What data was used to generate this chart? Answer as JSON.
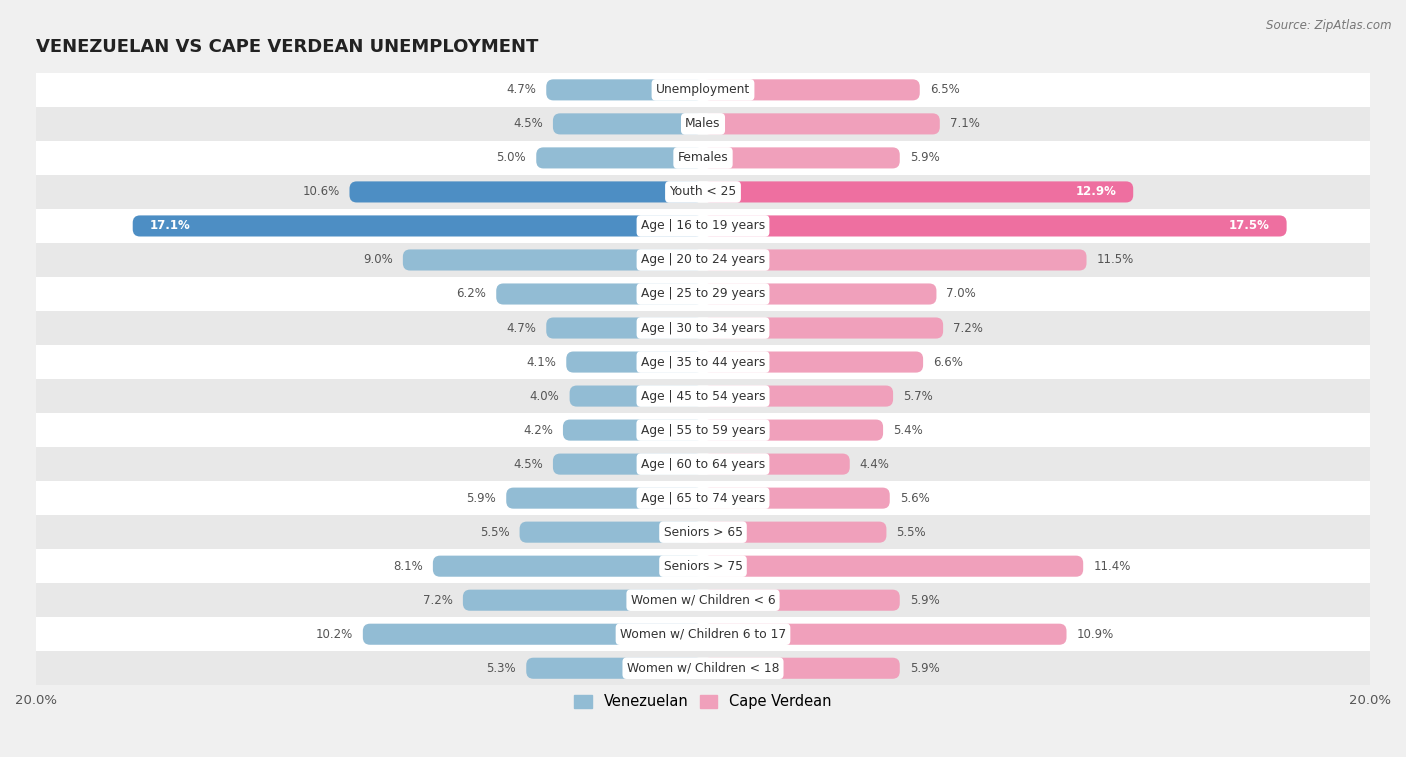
{
  "title": "VENEZUELAN VS CAPE VERDEAN UNEMPLOYMENT",
  "source": "Source: ZipAtlas.com",
  "categories": [
    "Unemployment",
    "Males",
    "Females",
    "Youth < 25",
    "Age | 16 to 19 years",
    "Age | 20 to 24 years",
    "Age | 25 to 29 years",
    "Age | 30 to 34 years",
    "Age | 35 to 44 years",
    "Age | 45 to 54 years",
    "Age | 55 to 59 years",
    "Age | 60 to 64 years",
    "Age | 65 to 74 years",
    "Seniors > 65",
    "Seniors > 75",
    "Women w/ Children < 6",
    "Women w/ Children 6 to 17",
    "Women w/ Children < 18"
  ],
  "venezuelan": [
    4.7,
    4.5,
    5.0,
    10.6,
    17.1,
    9.0,
    6.2,
    4.7,
    4.1,
    4.0,
    4.2,
    4.5,
    5.9,
    5.5,
    8.1,
    7.2,
    10.2,
    5.3
  ],
  "cape_verdean": [
    6.5,
    7.1,
    5.9,
    12.9,
    17.5,
    11.5,
    7.0,
    7.2,
    6.6,
    5.7,
    5.4,
    4.4,
    5.6,
    5.5,
    11.4,
    5.9,
    10.9,
    5.9
  ],
  "venezuelan_color": "#92bcd4",
  "cape_verdean_color": "#f0a0bb",
  "venezuelan_highlight_color": "#4d8ec4",
  "cape_verdean_highlight_color": "#ee6fa0",
  "highlight_rows": [
    3,
    4
  ],
  "background_color": "#f0f0f0",
  "row_bg_white": "#ffffff",
  "row_bg_gray": "#e8e8e8",
  "bar_height": 0.62,
  "xlim": 20.0,
  "legend_venezuelan": "Venezuelan",
  "legend_cape_verdean": "Cape Verdean",
  "value_threshold_inside": 12.0,
  "label_inside_color": "#ffffff",
  "label_outside_color": "#555555"
}
